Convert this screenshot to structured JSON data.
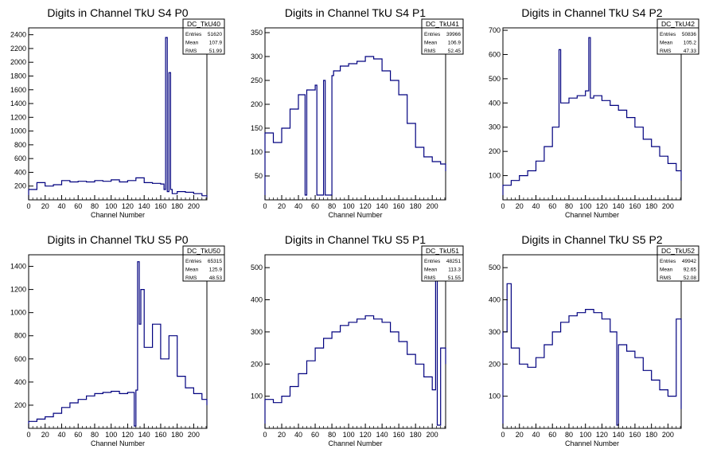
{
  "chart_data": [
    {
      "type": "histogram",
      "title": "Digits in Channel TkU S4 P0",
      "xlabel": "Channel Number",
      "xlim": [
        0,
        216
      ],
      "ylim": [
        0,
        2500
      ],
      "xticks": [
        0,
        20,
        40,
        60,
        80,
        100,
        120,
        140,
        160,
        180,
        200
      ],
      "yticks": [
        200,
        400,
        600,
        800,
        1000,
        1200,
        1400,
        1600,
        1800,
        2000,
        2200,
        2400
      ],
      "stats": {
        "name": "DC_TkU40",
        "rows": [
          [
            "Entries",
            "51620"
          ],
          [
            "Mean",
            "107.9"
          ],
          [
            "RMS",
            "51.99"
          ]
        ]
      },
      "bins": {
        "x": [
          0,
          10,
          20,
          30,
          40,
          50,
          60,
          70,
          80,
          90,
          100,
          110,
          120,
          130,
          140,
          150,
          160,
          164,
          166,
          168,
          170,
          172,
          174,
          180,
          190,
          200,
          210,
          216
        ],
        "y": [
          150,
          250,
          200,
          220,
          280,
          260,
          270,
          260,
          280,
          270,
          290,
          260,
          280,
          320,
          250,
          240,
          230,
          150,
          2360,
          120,
          1850,
          150,
          90,
          120,
          110,
          90,
          60,
          40
        ]
      }
    },
    {
      "type": "histogram",
      "title": "Digits in Channel TkU S4 P1",
      "xlabel": "Channel Number",
      "xlim": [
        0,
        216
      ],
      "ylim": [
        0,
        360
      ],
      "xticks": [
        0,
        20,
        40,
        60,
        80,
        100,
        120,
        140,
        160,
        180,
        200
      ],
      "yticks": [
        50,
        100,
        150,
        200,
        250,
        300,
        350
      ],
      "stats": {
        "name": "DC_TkU41",
        "rows": [
          [
            "Entries",
            "39966"
          ],
          [
            "Mean",
            "106.9"
          ],
          [
            "RMS",
            "52.45"
          ]
        ]
      },
      "bins": {
        "x": [
          0,
          10,
          20,
          30,
          40,
          48,
          50,
          60,
          62,
          70,
          72,
          80,
          82,
          90,
          100,
          110,
          120,
          130,
          140,
          150,
          160,
          170,
          180,
          190,
          200,
          210,
          216
        ],
        "y": [
          140,
          120,
          150,
          190,
          220,
          10,
          230,
          240,
          10,
          250,
          10,
          260,
          270,
          280,
          285,
          290,
          300,
          295,
          270,
          250,
          220,
          160,
          110,
          90,
          80,
          75,
          60
        ]
      }
    },
    {
      "type": "histogram",
      "title": "Digits in Channel TkU S4 P2",
      "xlabel": "Channel Number",
      "xlim": [
        0,
        216
      ],
      "ylim": [
        0,
        710
      ],
      "xticks": [
        0,
        20,
        40,
        60,
        80,
        100,
        120,
        140,
        160,
        180,
        200
      ],
      "yticks": [
        100,
        200,
        300,
        400,
        500,
        600,
        700
      ],
      "stats": {
        "name": "DC_TkU42",
        "rows": [
          [
            "Entries",
            "50836"
          ],
          [
            "Mean",
            "105.2"
          ],
          [
            "RMS",
            "47.33"
          ]
        ]
      },
      "bins": {
        "x": [
          0,
          10,
          20,
          30,
          40,
          50,
          60,
          68,
          70,
          80,
          90,
          100,
          104,
          106,
          110,
          120,
          130,
          140,
          150,
          160,
          170,
          180,
          190,
          200,
          210,
          216
        ],
        "y": [
          60,
          80,
          100,
          120,
          160,
          220,
          300,
          620,
          400,
          420,
          430,
          450,
          670,
          420,
          430,
          410,
          390,
          370,
          340,
          300,
          250,
          220,
          180,
          150,
          120,
          80
        ]
      }
    },
    {
      "type": "histogram",
      "title": "Digits in Channel TkU S5 P0",
      "xlabel": "Channel Number",
      "xlim": [
        0,
        216
      ],
      "ylim": [
        0,
        1500
      ],
      "xticks": [
        0,
        20,
        40,
        60,
        80,
        100,
        120,
        140,
        160,
        180,
        200
      ],
      "yticks": [
        200,
        400,
        600,
        800,
        1000,
        1200,
        1400
      ],
      "stats": {
        "name": "DC_TkU50",
        "rows": [
          [
            "Entries",
            "65315"
          ],
          [
            "Mean",
            "125.9"
          ],
          [
            "RMS",
            "48.53"
          ]
        ]
      },
      "bins": {
        "x": [
          0,
          10,
          20,
          30,
          40,
          50,
          60,
          70,
          80,
          90,
          100,
          110,
          120,
          128,
          130,
          132,
          134,
          136,
          140,
          150,
          160,
          170,
          180,
          190,
          200,
          210,
          216
        ],
        "y": [
          60,
          80,
          100,
          130,
          180,
          220,
          250,
          280,
          300,
          310,
          320,
          300,
          310,
          20,
          330,
          1440,
          900,
          1200,
          700,
          900,
          600,
          800,
          450,
          350,
          300,
          250,
          200
        ]
      }
    },
    {
      "type": "histogram",
      "title": "Digits in Channel TkU S5 P1",
      "xlabel": "Channel Number",
      "xlim": [
        0,
        216
      ],
      "ylim": [
        0,
        540
      ],
      "xticks": [
        0,
        20,
        40,
        60,
        80,
        100,
        120,
        140,
        160,
        180,
        200
      ],
      "yticks": [
        100,
        200,
        300,
        400,
        500
      ],
      "stats": {
        "name": "DC_TkU51",
        "rows": [
          [
            "Entries",
            "48251"
          ],
          [
            "Mean",
            "113.3"
          ],
          [
            "RMS",
            "51.55"
          ]
        ]
      },
      "bins": {
        "x": [
          0,
          10,
          20,
          30,
          40,
          50,
          60,
          70,
          80,
          90,
          100,
          110,
          120,
          130,
          140,
          150,
          160,
          170,
          180,
          190,
          200,
          204,
          206,
          210,
          216
        ],
        "y": [
          90,
          80,
          100,
          130,
          170,
          210,
          250,
          280,
          300,
          320,
          330,
          340,
          350,
          340,
          330,
          300,
          270,
          230,
          200,
          160,
          120,
          460,
          10,
          250,
          200
        ]
      }
    },
    {
      "type": "histogram",
      "title": "Digits in Channel TkU S5 P2",
      "xlabel": "Channel Number",
      "xlim": [
        0,
        216
      ],
      "ylim": [
        0,
        540
      ],
      "xticks": [
        0,
        20,
        40,
        60,
        80,
        100,
        120,
        140,
        160,
        180,
        200
      ],
      "yticks": [
        100,
        200,
        300,
        400,
        500
      ],
      "stats": {
        "name": "DC_TkU52",
        "rows": [
          [
            "Entries",
            "49942"
          ],
          [
            "Mean",
            "92.65"
          ],
          [
            "RMS",
            "52.08"
          ]
        ]
      },
      "bins": {
        "x": [
          0,
          5,
          10,
          20,
          30,
          40,
          50,
          60,
          70,
          80,
          90,
          100,
          110,
          120,
          130,
          138,
          140,
          150,
          160,
          170,
          180,
          190,
          200,
          210,
          216
        ],
        "y": [
          300,
          450,
          250,
          200,
          190,
          220,
          260,
          300,
          330,
          350,
          360,
          370,
          360,
          340,
          300,
          10,
          260,
          240,
          220,
          180,
          150,
          120,
          100,
          340,
          60
        ]
      }
    }
  ]
}
